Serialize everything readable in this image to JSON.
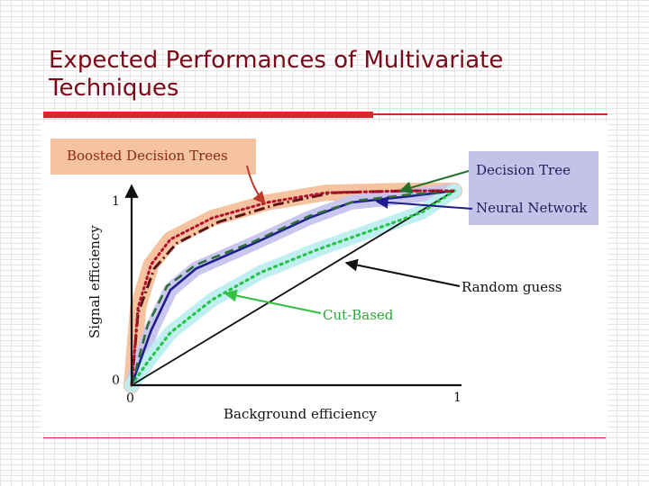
{
  "slide": {
    "title": "Expected Performances of Multivariate Techniques"
  },
  "colors": {
    "title_text": "#7a0a18",
    "accent_rule": "#d8282e",
    "bdt_band": "#f5c3a0",
    "bdt_line": "#b0102a",
    "dt_line": "#5a1418",
    "nn_band": "#c7c4ee",
    "nn_line": "#1d1d8c",
    "nn_label_bg": "#c3c3ea",
    "cut_band": "#bdeef0",
    "cut_line": "#27c44a",
    "dt_arrow": "#24702c",
    "cut_arrow": "#34c040",
    "random_line": "#111111"
  },
  "chart_data": {
    "type": "line",
    "title": "",
    "xlabel": "Background efficiency",
    "ylabel": "Signal efficiency",
    "xlim": [
      0,
      1
    ],
    "ylim": [
      0,
      1
    ],
    "x_ticks": [
      "0",
      "1"
    ],
    "y_ticks": [
      "0",
      "1"
    ],
    "grid": false,
    "series": [
      {
        "name": "Boosted Decision Trees",
        "style": "dotted",
        "band": true,
        "points": [
          [
            0,
            0
          ],
          [
            0.02,
            0.4
          ],
          [
            0.06,
            0.62
          ],
          [
            0.12,
            0.75
          ],
          [
            0.25,
            0.86
          ],
          [
            0.42,
            0.94
          ],
          [
            0.6,
            0.99
          ],
          [
            0.85,
            1.0
          ],
          [
            1.0,
            1.0
          ]
        ]
      },
      {
        "name": "Decision Tree",
        "style": "dashdot",
        "band": false,
        "points": [
          [
            0,
            0
          ],
          [
            0.02,
            0.37
          ],
          [
            0.07,
            0.6
          ],
          [
            0.14,
            0.73
          ],
          [
            0.27,
            0.84
          ],
          [
            0.45,
            0.93
          ],
          [
            0.62,
            0.99
          ],
          [
            0.85,
            1.0
          ],
          [
            1.0,
            1.0
          ]
        ]
      },
      {
        "name": "Neural Network",
        "style": "solid",
        "band": true,
        "points": [
          [
            0,
            0
          ],
          [
            0.06,
            0.28
          ],
          [
            0.12,
            0.49
          ],
          [
            0.2,
            0.6
          ],
          [
            0.38,
            0.73
          ],
          [
            0.55,
            0.86
          ],
          [
            0.68,
            0.94
          ],
          [
            0.85,
            0.97
          ],
          [
            1.0,
            1.0
          ]
        ]
      },
      {
        "name": "Neural Network (dashed)",
        "style": "dashed",
        "band": false,
        "points": [
          [
            0,
            0
          ],
          [
            0.05,
            0.31
          ],
          [
            0.11,
            0.51
          ],
          [
            0.2,
            0.62
          ],
          [
            0.38,
            0.74
          ],
          [
            0.55,
            0.87
          ],
          [
            0.7,
            0.95
          ],
          [
            0.86,
            0.98
          ],
          [
            1.0,
            1.0
          ]
        ]
      },
      {
        "name": "Cut-Based",
        "style": "dotted",
        "band": true,
        "points": [
          [
            0,
            0
          ],
          [
            0.05,
            0.12
          ],
          [
            0.12,
            0.27
          ],
          [
            0.25,
            0.44
          ],
          [
            0.4,
            0.58
          ],
          [
            0.58,
            0.7
          ],
          [
            0.75,
            0.8
          ],
          [
            0.9,
            0.89
          ],
          [
            1.0,
            1.0
          ]
        ]
      },
      {
        "name": "Random guess",
        "style": "solid",
        "band": false,
        "points": [
          [
            0,
            0
          ],
          [
            1,
            1
          ]
        ]
      }
    ],
    "annotations": [
      {
        "text": "Boosted Decision Trees",
        "target": "Boosted Decision Trees",
        "anchor": [
          0.38,
          0.9
        ]
      },
      {
        "text": "Decision Tree",
        "target": "Decision Tree",
        "anchor": [
          0.82,
          1.0
        ]
      },
      {
        "text": "Neural Network",
        "target": "Neural Network",
        "anchor": [
          0.73,
          0.97
        ]
      },
      {
        "text": "Random guess",
        "target": "Random guess",
        "anchor": [
          0.64,
          0.64
        ]
      },
      {
        "text": "Cut-Based",
        "target": "Cut-Based",
        "anchor": [
          0.28,
          0.46
        ]
      }
    ]
  }
}
